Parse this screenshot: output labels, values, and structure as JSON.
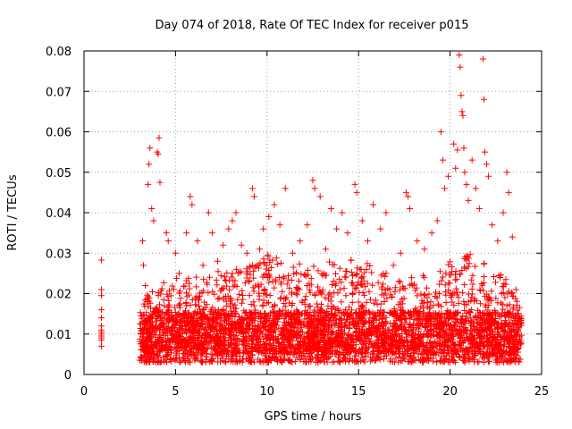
{
  "chart_data": {
    "type": "scatter",
    "title": "Day 074 of 2018, Rate Of TEC Index for receiver p015",
    "xlabel": "GPS time / hours",
    "ylabel": "ROTI / TECUs",
    "xlim": [
      0,
      25
    ],
    "ylim": [
      0,
      0.08
    ],
    "xticks": [
      0,
      5,
      10,
      15,
      20,
      25
    ],
    "xtick_labels": [
      "0",
      "5",
      "10",
      "15",
      "20",
      "25"
    ],
    "yticks": [
      0,
      0.01,
      0.02,
      0.03,
      0.04,
      0.05,
      0.06,
      0.07,
      0.08
    ],
    "ytick_labels": [
      "0",
      "0.01",
      "0.02",
      "0.03",
      "0.04",
      "0.05",
      "0.06",
      "0.07",
      "0.08"
    ],
    "grid": true,
    "marker": "+",
    "color": "#ff0000",
    "series": [
      {
        "name": "ROTI",
        "points": [
          [
            0.95,
            0.0283
          ],
          [
            0.95,
            0.021
          ],
          [
            0.95,
            0.0195
          ],
          [
            0.95,
            0.016
          ],
          [
            0.95,
            0.014
          ],
          [
            0.95,
            0.012
          ],
          [
            0.95,
            0.011
          ],
          [
            0.95,
            0.0105
          ],
          [
            0.95,
            0.01
          ],
          [
            0.95,
            0.0095
          ],
          [
            0.95,
            0.009
          ],
          [
            0.95,
            0.0085
          ],
          [
            0.95,
            0.007
          ],
          [
            3.2,
            0.033
          ],
          [
            3.25,
            0.027
          ],
          [
            3.35,
            0.022
          ],
          [
            3.45,
            0.018
          ],
          [
            3.5,
            0.047
          ],
          [
            3.55,
            0.052
          ],
          [
            3.6,
            0.056
          ],
          [
            3.7,
            0.041
          ],
          [
            3.8,
            0.038
          ],
          [
            4.0,
            0.055
          ],
          [
            4.05,
            0.0545
          ],
          [
            4.1,
            0.0585
          ],
          [
            4.15,
            0.0475
          ],
          [
            4.5,
            0.035
          ],
          [
            4.6,
            0.033
          ],
          [
            5.0,
            0.03
          ],
          [
            5.2,
            0.025
          ],
          [
            5.6,
            0.035
          ],
          [
            5.8,
            0.044
          ],
          [
            5.9,
            0.042
          ],
          [
            6.2,
            0.033
          ],
          [
            6.5,
            0.027
          ],
          [
            6.8,
            0.04
          ],
          [
            7.0,
            0.035
          ],
          [
            7.3,
            0.028
          ],
          [
            7.6,
            0.032
          ],
          [
            7.9,
            0.036
          ],
          [
            8.1,
            0.038
          ],
          [
            8.3,
            0.04
          ],
          [
            8.6,
            0.032
          ],
          [
            8.9,
            0.03
          ],
          [
            9.2,
            0.046
          ],
          [
            9.3,
            0.044
          ],
          [
            9.6,
            0.031
          ],
          [
            9.8,
            0.036
          ],
          [
            10.1,
            0.039
          ],
          [
            10.4,
            0.042
          ],
          [
            10.7,
            0.037
          ],
          [
            11.0,
            0.046
          ],
          [
            11.4,
            0.03
          ],
          [
            11.8,
            0.033
          ],
          [
            12.2,
            0.037
          ],
          [
            12.5,
            0.048
          ],
          [
            12.6,
            0.046
          ],
          [
            12.9,
            0.044
          ],
          [
            13.2,
            0.031
          ],
          [
            13.5,
            0.041
          ],
          [
            13.8,
            0.036
          ],
          [
            14.1,
            0.04
          ],
          [
            14.4,
            0.035
          ],
          [
            14.8,
            0.047
          ],
          [
            14.9,
            0.045
          ],
          [
            15.2,
            0.038
          ],
          [
            15.5,
            0.033
          ],
          [
            15.8,
            0.042
          ],
          [
            16.2,
            0.036
          ],
          [
            16.5,
            0.04
          ],
          [
            16.9,
            0.027
          ],
          [
            17.3,
            0.03
          ],
          [
            17.6,
            0.045
          ],
          [
            17.7,
            0.044
          ],
          [
            17.8,
            0.041
          ],
          [
            18.2,
            0.033
          ],
          [
            18.6,
            0.031
          ],
          [
            19.0,
            0.035
          ],
          [
            19.3,
            0.038
          ],
          [
            19.5,
            0.06
          ],
          [
            19.6,
            0.053
          ],
          [
            19.7,
            0.046
          ],
          [
            19.9,
            0.049
          ],
          [
            20.2,
            0.057
          ],
          [
            20.3,
            0.051
          ],
          [
            20.4,
            0.0555
          ],
          [
            20.5,
            0.079
          ],
          [
            20.55,
            0.076
          ],
          [
            20.6,
            0.069
          ],
          [
            20.65,
            0.065
          ],
          [
            20.7,
            0.064
          ],
          [
            20.75,
            0.056
          ],
          [
            20.8,
            0.05
          ],
          [
            20.9,
            0.047
          ],
          [
            21.0,
            0.043
          ],
          [
            21.2,
            0.053
          ],
          [
            21.4,
            0.046
          ],
          [
            21.6,
            0.041
          ],
          [
            21.8,
            0.078
          ],
          [
            21.85,
            0.068
          ],
          [
            21.9,
            0.055
          ],
          [
            22.0,
            0.052
          ],
          [
            22.1,
            0.049
          ],
          [
            22.3,
            0.037
          ],
          [
            22.6,
            0.033
          ],
          [
            22.9,
            0.04
          ],
          [
            23.1,
            0.05
          ],
          [
            23.2,
            0.045
          ],
          [
            23.4,
            0.034
          ],
          [
            23.6,
            0.021
          ],
          [
            23.8,
            0.014
          ]
        ],
        "dense_band": {
          "x_range": [
            3.05,
            23.9
          ],
          "y_floor": 0.003,
          "baseline_center": 0.0095,
          "envelope": [
            [
              3.0,
              0.018
            ],
            [
              3.5,
              0.02
            ],
            [
              4.0,
              0.022
            ],
            [
              5.0,
              0.024
            ],
            [
              6.0,
              0.025
            ],
            [
              7.0,
              0.026
            ],
            [
              8.0,
              0.026
            ],
            [
              9.0,
              0.027
            ],
            [
              10.0,
              0.03
            ],
            [
              11.0,
              0.029
            ],
            [
              12.0,
              0.027
            ],
            [
              13.0,
              0.028
            ],
            [
              14.0,
              0.028
            ],
            [
              15.0,
              0.029
            ],
            [
              16.0,
              0.026
            ],
            [
              17.0,
              0.025
            ],
            [
              18.0,
              0.024
            ],
            [
              19.0,
              0.025
            ],
            [
              20.0,
              0.028
            ],
            [
              21.0,
              0.03
            ],
            [
              22.0,
              0.028
            ],
            [
              23.0,
              0.024
            ],
            [
              23.5,
              0.02
            ],
            [
              24.0,
              0.016
            ]
          ]
        }
      }
    ]
  }
}
